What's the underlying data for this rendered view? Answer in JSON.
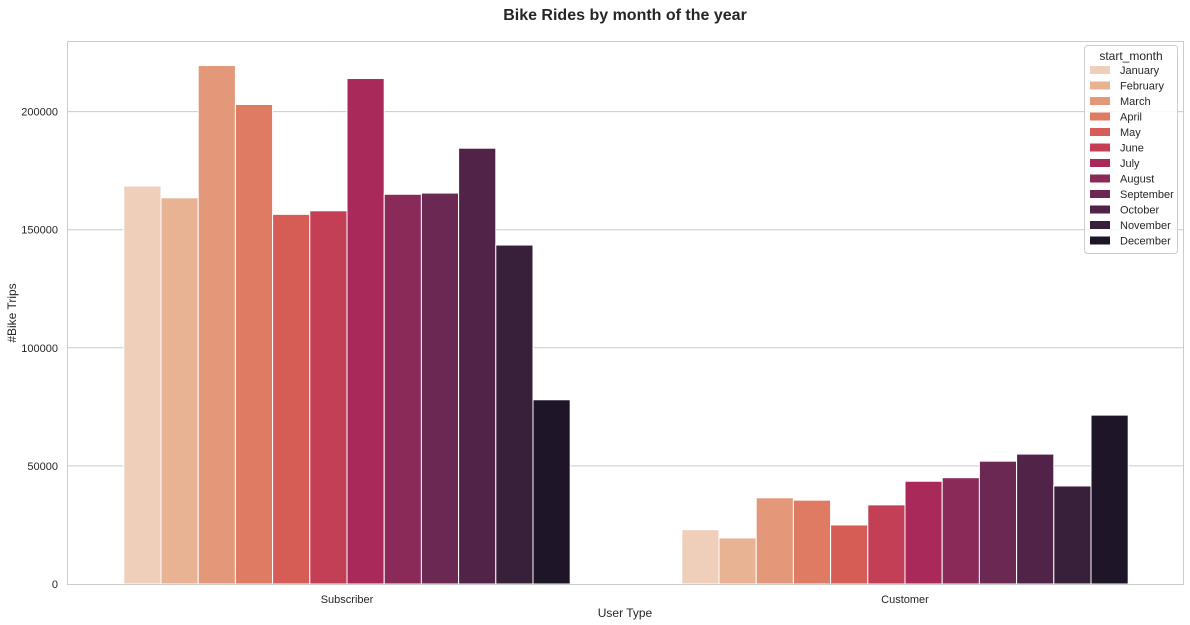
{
  "chart_data": {
    "type": "bar",
    "title": "Bike Rides by month of the year",
    "xlabel": "User Type",
    "ylabel": "#Bike Trips",
    "categories": [
      "Subscriber",
      "Customer"
    ],
    "ylim": [
      0,
      230000
    ],
    "yticks": [
      0,
      50000,
      100000,
      150000,
      200000
    ],
    "ytick_labels": [
      "0",
      "50000",
      "100000",
      "150000",
      "200000"
    ],
    "grid": "horizontal",
    "legend": {
      "title": "start_month",
      "position": "top-right"
    },
    "series": [
      {
        "name": "January",
        "color": "#efcfb9",
        "values": [
          168500,
          23000
        ]
      },
      {
        "name": "February",
        "color": "#e8b393",
        "values": [
          163500,
          19500
        ]
      },
      {
        "name": "March",
        "color": "#e3987a",
        "values": [
          219500,
          36500
        ]
      },
      {
        "name": "April",
        "color": "#df7b62",
        "values": [
          203000,
          35500
        ]
      },
      {
        "name": "May",
        "color": "#d55d55",
        "values": [
          156500,
          25000
        ]
      },
      {
        "name": "June",
        "color": "#c23f55",
        "values": [
          158000,
          33500
        ]
      },
      {
        "name": "July",
        "color": "#a92a5a",
        "values": [
          214000,
          43500
        ]
      },
      {
        "name": "August",
        "color": "#8a2a58",
        "values": [
          165000,
          45000
        ]
      },
      {
        "name": "September",
        "color": "#6b2853",
        "values": [
          165500,
          52000
        ]
      },
      {
        "name": "October",
        "color": "#522348",
        "values": [
          184500,
          55000
        ]
      },
      {
        "name": "November",
        "color": "#381f3a",
        "values": [
          143500,
          41500
        ]
      },
      {
        "name": "December",
        "color": "#1e1528",
        "values": [
          78000,
          71500
        ]
      }
    ]
  }
}
